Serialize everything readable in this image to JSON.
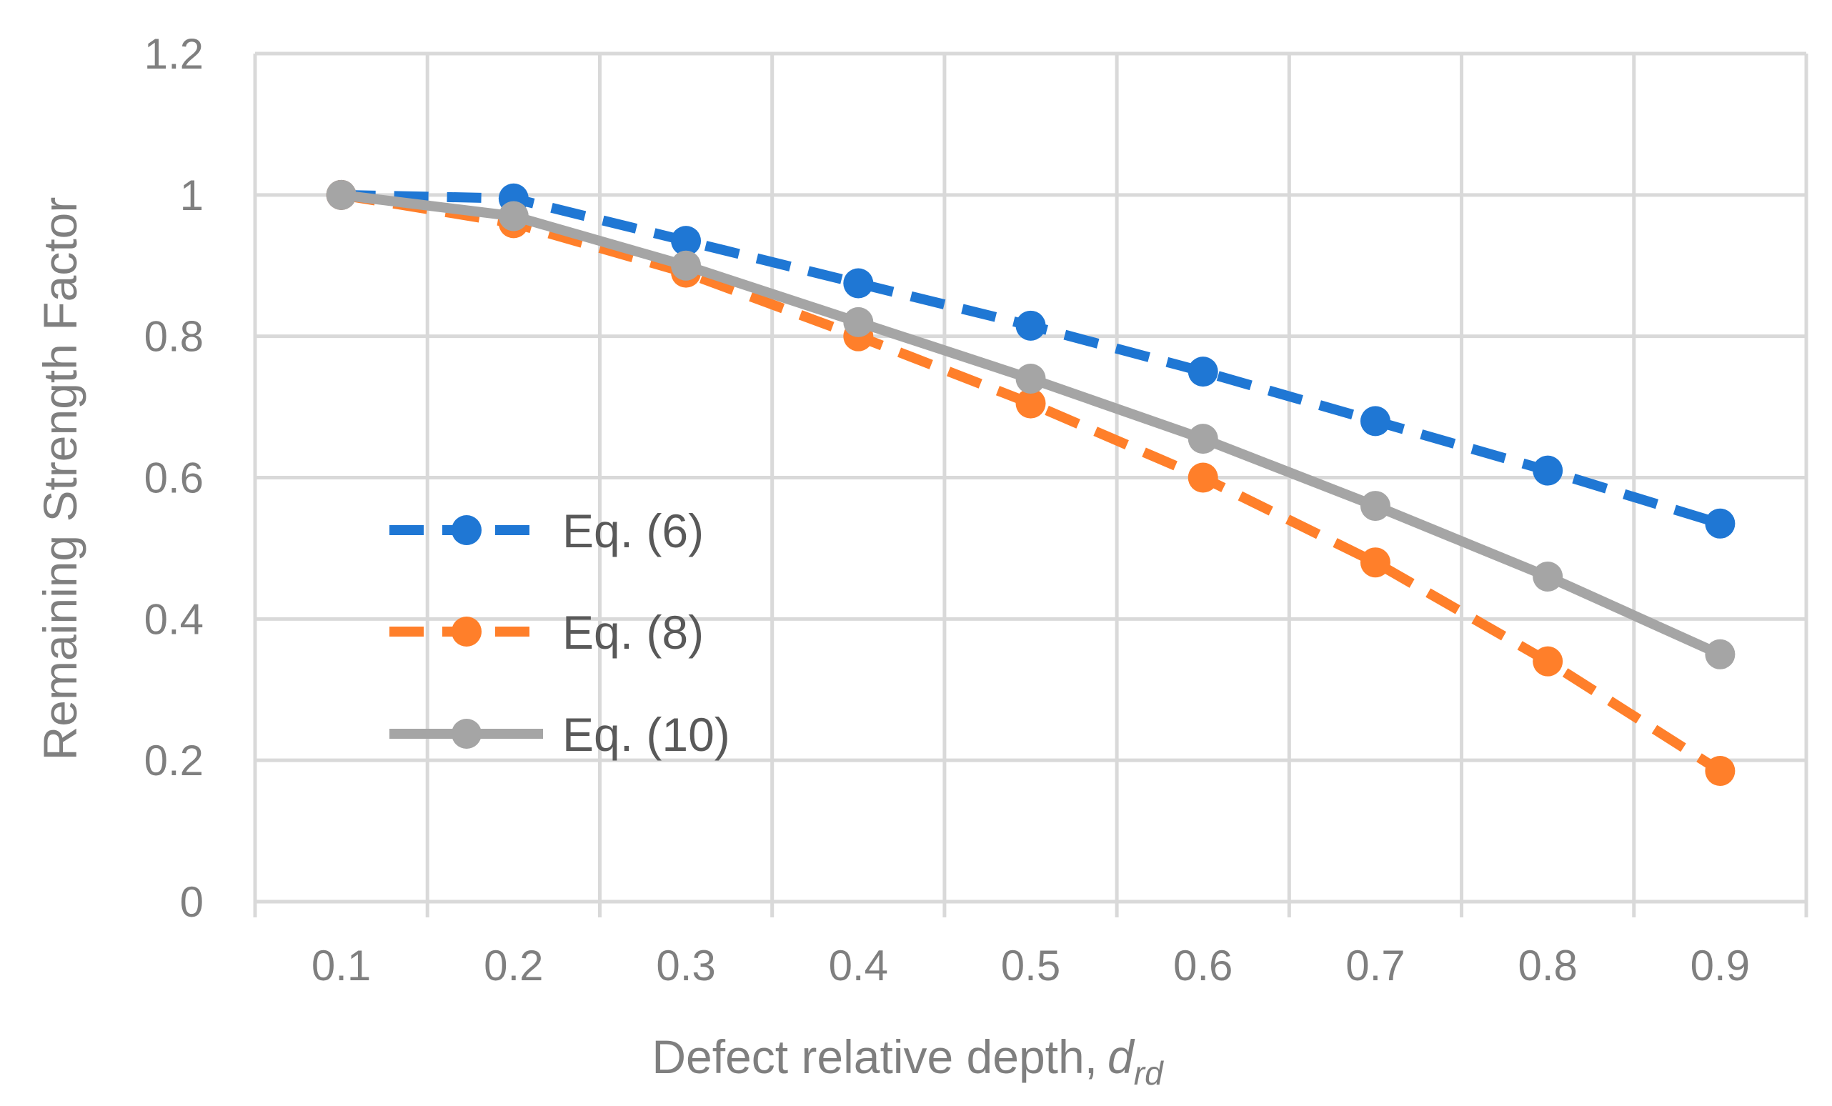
{
  "chart_data": {
    "type": "line",
    "title": "",
    "xlabel": "Defect relative depth,",
    "xlabel_symbol": "d",
    "xlabel_subscript": "rd",
    "ylabel": "Remaining Strength Factor",
    "x": [
      0.1,
      0.2,
      0.3,
      0.4,
      0.5,
      0.6,
      0.7,
      0.8,
      0.9
    ],
    "x_tick_labels": [
      "0.1",
      "0.2",
      "0.3",
      "0.4",
      "0.5",
      "0.6",
      "0.7",
      "0.8",
      "0.9"
    ],
    "y_tick_labels": [
      "0",
      "0.2",
      "0.4",
      "0.6",
      "0.8",
      "1",
      "1.2"
    ],
    "y_ticks": [
      0,
      0.2,
      0.4,
      0.6,
      0.8,
      1.0,
      1.2
    ],
    "ylim": [
      0,
      1.2
    ],
    "grid": true,
    "legend_position": "left-center",
    "series": [
      {
        "name": "Eq. (6)",
        "values": [
          1.0,
          0.995,
          0.935,
          0.875,
          0.815,
          0.75,
          0.68,
          0.61,
          0.535
        ],
        "color": "#1f77d4",
        "line_style": "dashed",
        "marker": "circle"
      },
      {
        "name": "Eq. (8)",
        "values": [
          1.0,
          0.96,
          0.89,
          0.8,
          0.705,
          0.6,
          0.48,
          0.34,
          0.185
        ],
        "color": "#ff7f2a",
        "line_style": "dashed",
        "marker": "circle"
      },
      {
        "name": "Eq. (10)",
        "values": [
          1.0,
          0.97,
          0.9,
          0.82,
          0.74,
          0.655,
          0.56,
          0.46,
          0.35
        ],
        "color": "#a5a5a5",
        "line_style": "solid",
        "marker": "circle"
      }
    ]
  }
}
